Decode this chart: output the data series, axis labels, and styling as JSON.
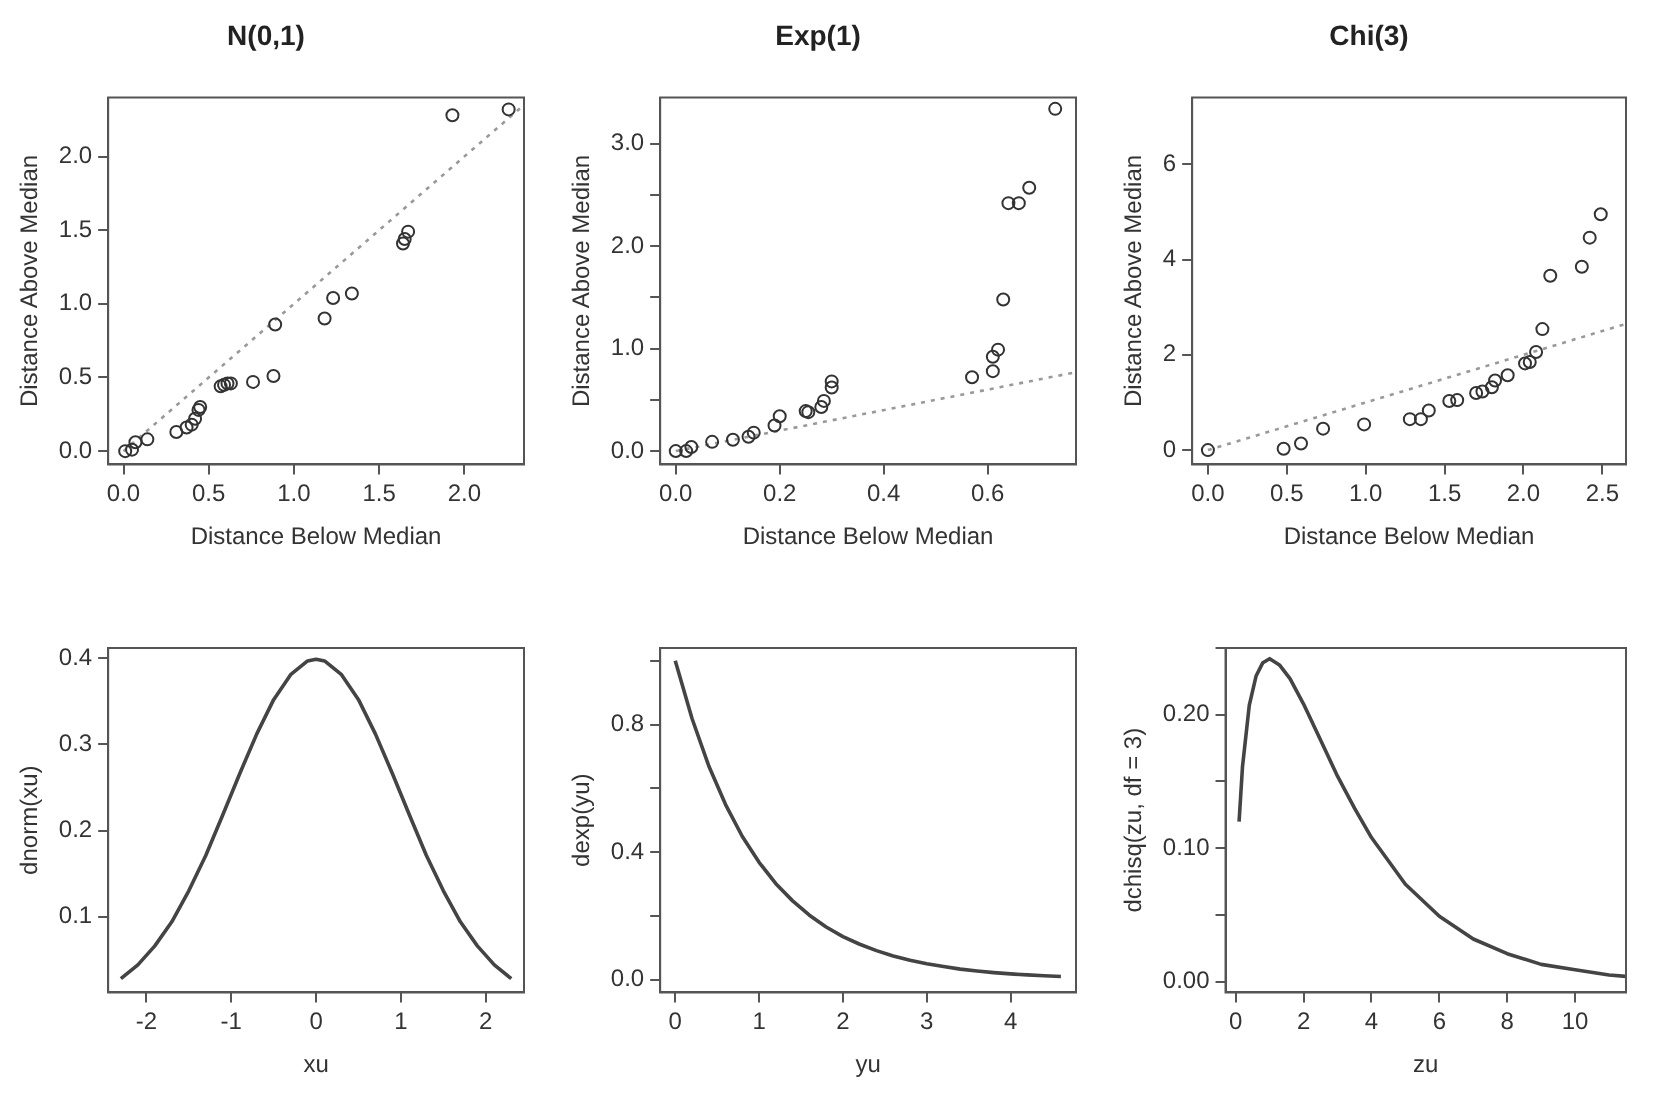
{
  "chart_data": [
    {
      "type": "scatter",
      "title": "N(0,1)",
      "xlabel": "Distance Below Median",
      "ylabel": "Distance Above Median",
      "marker": "circle",
      "xlim": [
        -0.09,
        2.35
      ],
      "xticks": [
        {
          "value": 0,
          "label": "0.0"
        },
        0.5,
        {
          "value": 1,
          "label": "1.0"
        },
        1.5,
        {
          "value": 2,
          "label": "2.0"
        }
      ],
      "ylim": [
        -0.09,
        2.4
      ],
      "yticks": [
        {
          "value": 0,
          "label": "0.0"
        },
        0.5,
        {
          "value": 1,
          "label": "1.0"
        },
        1.5,
        {
          "value": 2,
          "label": "2.0"
        }
      ],
      "series": [
        {
          "color": "#333333",
          "x": [
            0.01,
            0.05,
            0.07,
            0.14,
            0.31,
            0.37,
            0.4,
            0.42,
            0.44,
            0.45,
            0.57,
            0.59,
            0.61,
            0.63,
            0.76,
            0.88,
            0.89,
            1.18,
            1.23,
            1.34,
            1.64,
            1.65,
            1.67,
            1.93,
            2.26
          ],
          "values": [
            0,
            0.01,
            0.06,
            0.08,
            0.13,
            0.16,
            0.18,
            0.22,
            0.28,
            0.3,
            0.44,
            0.45,
            0.46,
            0.46,
            0.47,
            0.51,
            0.86,
            0.9,
            1.04,
            1.07,
            1.41,
            1.44,
            1.49,
            2.28,
            2.32
          ]
        },
        {
          "type": "line",
          "marker": "none",
          "line_style": "dotted",
          "color": "#999999",
          "x": [
            0,
            2.35
          ],
          "values": [
            0,
            2.35
          ]
        }
      ]
    },
    {
      "type": "scatter",
      "title": "Exp(1)",
      "xlabel": "Distance Below Median",
      "ylabel": "Distance Above Median",
      "marker": "circle",
      "xlim": [
        -0.03,
        0.77
      ],
      "xticks": [
        {
          "value": 0,
          "label": "0.0"
        },
        0.2,
        0.4,
        0.6
      ],
      "ylim": [
        -0.13,
        3.45
      ],
      "yticks": [
        {
          "value": 0,
          "label": "0.0"
        },
        {
          "value": 0.5,
          "label": null
        },
        {
          "value": 1,
          "label": "1.0"
        },
        {
          "value": 1.5,
          "label": null
        },
        {
          "value": 2,
          "label": "2.0"
        },
        {
          "value": 2.5,
          "label": null
        },
        {
          "value": 3,
          "label": "3.0"
        }
      ],
      "series": [
        {
          "color": "#333333",
          "x": [
            0,
            0.02,
            0.03,
            0.07,
            0.11,
            0.14,
            0.15,
            0.19,
            0.2,
            0.25,
            0.255,
            0.28,
            0.285,
            0.3,
            0.3,
            0.57,
            0.61,
            0.61,
            0.62,
            0.63,
            0.64,
            0.66,
            0.68,
            0.73
          ],
          "values": [
            0,
            0,
            0.04,
            0.09,
            0.11,
            0.14,
            0.18,
            0.25,
            0.34,
            0.39,
            0.38,
            0.43,
            0.49,
            0.62,
            0.68,
            0.72,
            0.78,
            0.92,
            0.99,
            1.48,
            2.42,
            2.42,
            2.57,
            3.34
          ]
        },
        {
          "type": "line",
          "marker": "none",
          "line_style": "dotted",
          "color": "#999999",
          "x": [
            0,
            0.77
          ],
          "values": [
            0,
            0.77
          ]
        }
      ]
    },
    {
      "type": "scatter",
      "title": "Chi(3)",
      "xlabel": "Distance Below Median",
      "ylabel": "Distance Above Median",
      "marker": "circle",
      "xlim": [
        -0.1,
        2.65
      ],
      "xticks": [
        {
          "value": 0,
          "label": "0.0"
        },
        0.5,
        {
          "value": 1,
          "label": "1.0"
        },
        1.5,
        {
          "value": 2,
          "label": "2.0"
        },
        2.5
      ],
      "ylim": [
        -0.3,
        7.4
      ],
      "yticks": [
        0,
        2,
        4,
        6
      ],
      "series": [
        {
          "color": "#333333",
          "x": [
            0,
            0.48,
            0.59,
            0.73,
            0.99,
            1.28,
            1.35,
            1.4,
            1.53,
            1.58,
            1.7,
            1.74,
            1.8,
            1.82,
            1.9,
            2.01,
            2.04,
            2.08,
            2.12,
            2.17,
            2.37,
            2.42,
            2.49
          ],
          "values": [
            0,
            0.03,
            0.14,
            0.45,
            0.54,
            0.65,
            0.65,
            0.83,
            1.03,
            1.05,
            1.2,
            1.23,
            1.32,
            1.46,
            1.57,
            1.82,
            1.85,
            2.06,
            2.54,
            3.66,
            3.85,
            4.46,
            4.95
          ]
        },
        {
          "type": "line",
          "marker": "none",
          "line_style": "dotted",
          "color": "#999999",
          "x": [
            0,
            2.65
          ],
          "values": [
            0,
            2.65
          ]
        }
      ]
    },
    {
      "type": "line",
      "xlabel": "xu",
      "ylabel": "dnorm(xu)",
      "xlim": [
        -2.45,
        2.45
      ],
      "xticks": [
        -2,
        -1,
        0,
        1,
        2
      ],
      "ylim": [
        0.012,
        0.412
      ],
      "yticks": [
        0.1,
        0.2,
        0.3,
        0.4
      ],
      "series": [
        {
          "color": "#444444",
          "x": [
            -2.3,
            -2.1,
            -1.9,
            -1.7,
            -1.5,
            -1.3,
            -1.1,
            -0.9,
            -0.7,
            -0.5,
            -0.3,
            -0.1,
            0,
            0.1,
            0.3,
            0.5,
            0.7,
            0.9,
            1.1,
            1.3,
            1.5,
            1.7,
            1.9,
            2.1,
            2.3
          ],
          "values": [
            0.028,
            0.044,
            0.066,
            0.094,
            0.13,
            0.171,
            0.218,
            0.266,
            0.312,
            0.352,
            0.381,
            0.397,
            0.399,
            0.397,
            0.381,
            0.352,
            0.312,
            0.266,
            0.218,
            0.171,
            0.13,
            0.094,
            0.066,
            0.044,
            0.028
          ]
        }
      ]
    },
    {
      "type": "line",
      "xlabel": "yu",
      "ylabel": "dexp(yu)",
      "xlim": [
        -0.18,
        4.78
      ],
      "xticks": [
        0,
        1,
        2,
        3,
        4
      ],
      "ylim": [
        -0.04,
        1.04
      ],
      "yticks": [
        {
          "value": 0,
          "label": "0.0"
        },
        {
          "value": 0.2,
          "label": null
        },
        0.4,
        {
          "value": 0.6,
          "label": null
        },
        0.8,
        {
          "value": 1,
          "label": null
        }
      ],
      "series": [
        {
          "color": "#444444",
          "x": [
            0,
            0.2,
            0.4,
            0.6,
            0.8,
            1,
            1.2,
            1.4,
            1.6,
            1.8,
            2,
            2.2,
            2.4,
            2.6,
            2.8,
            3,
            3.2,
            3.4,
            3.6,
            3.8,
            4,
            4.2,
            4.4,
            4.6
          ],
          "values": [
            1,
            0.819,
            0.67,
            0.549,
            0.449,
            0.368,
            0.301,
            0.247,
            0.202,
            0.165,
            0.135,
            0.111,
            0.091,
            0.074,
            0.061,
            0.05,
            0.041,
            0.033,
            0.027,
            0.022,
            0.018,
            0.015,
            0.012,
            0.01
          ]
        }
      ]
    },
    {
      "type": "line",
      "xlabel": "zu",
      "ylabel": "dchisq(zu, df = 3)",
      "xlim": [
        -0.3,
        11.5
      ],
      "xticks": [
        0,
        2,
        4,
        6,
        8,
        10
      ],
      "ylim": [
        -0.008,
        0.25
      ],
      "yticks": [
        {
          "value": 0,
          "label": "0.00"
        },
        {
          "value": 0.05,
          "label": null
        },
        {
          "value": 0.1,
          "label": "0.10"
        },
        {
          "value": 0.15,
          "label": null
        },
        {
          "value": 0.2,
          "label": "0.20"
        },
        {
          "value": 0.25,
          "label": null
        }
      ],
      "series": [
        {
          "color": "#444444",
          "x": [
            0.1,
            0.2,
            0.4,
            0.6,
            0.8,
            1,
            1.3,
            1.6,
            2,
            2.5,
            3,
            3.5,
            4,
            5,
            6,
            7,
            8,
            9,
            10,
            11,
            11.5
          ],
          "values": [
            0.12,
            0.161,
            0.207,
            0.229,
            0.239,
            0.242,
            0.237,
            0.227,
            0.208,
            0.181,
            0.154,
            0.13,
            0.108,
            0.073,
            0.049,
            0.032,
            0.021,
            0.013,
            0.009,
            0.005,
            0.004
          ]
        }
      ]
    }
  ]
}
